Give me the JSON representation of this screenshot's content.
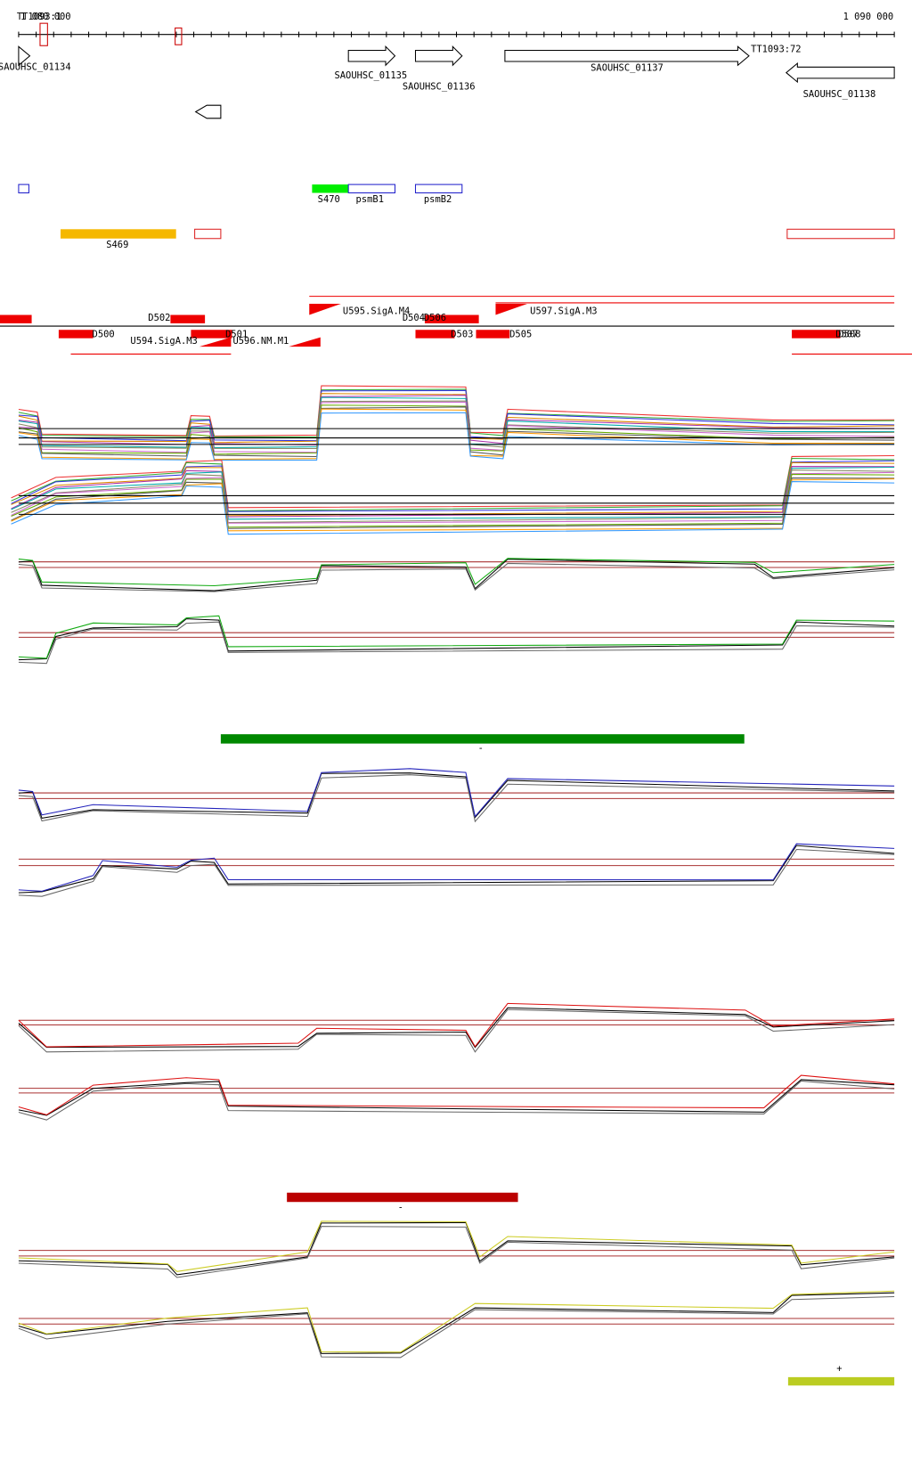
{
  "ruler": {
    "left_labels": [
      "TT1093:1",
      "1 080 000"
    ],
    "right_label": "1 090 000"
  },
  "genes": [
    "SAOUHSC_01134",
    "SAOUHSC_01135",
    "SAOUHSC_01136",
    "SAOUHSC_01137",
    "TT1093:72",
    "SAOUHSC_01138"
  ],
  "features": [
    "S470",
    "psmB1",
    "psmB2",
    "S469"
  ],
  "regulatory": [
    "U595.SigA.M4",
    "U597.SigA.M3",
    "D502",
    "D504",
    "D506",
    "D500",
    "D501",
    "D503",
    "D505",
    "D507",
    "D508",
    "U594.SigA.M3",
    "U596.NM.M1"
  ],
  "bars": [
    "-",
    "-",
    "+"
  ]
}
